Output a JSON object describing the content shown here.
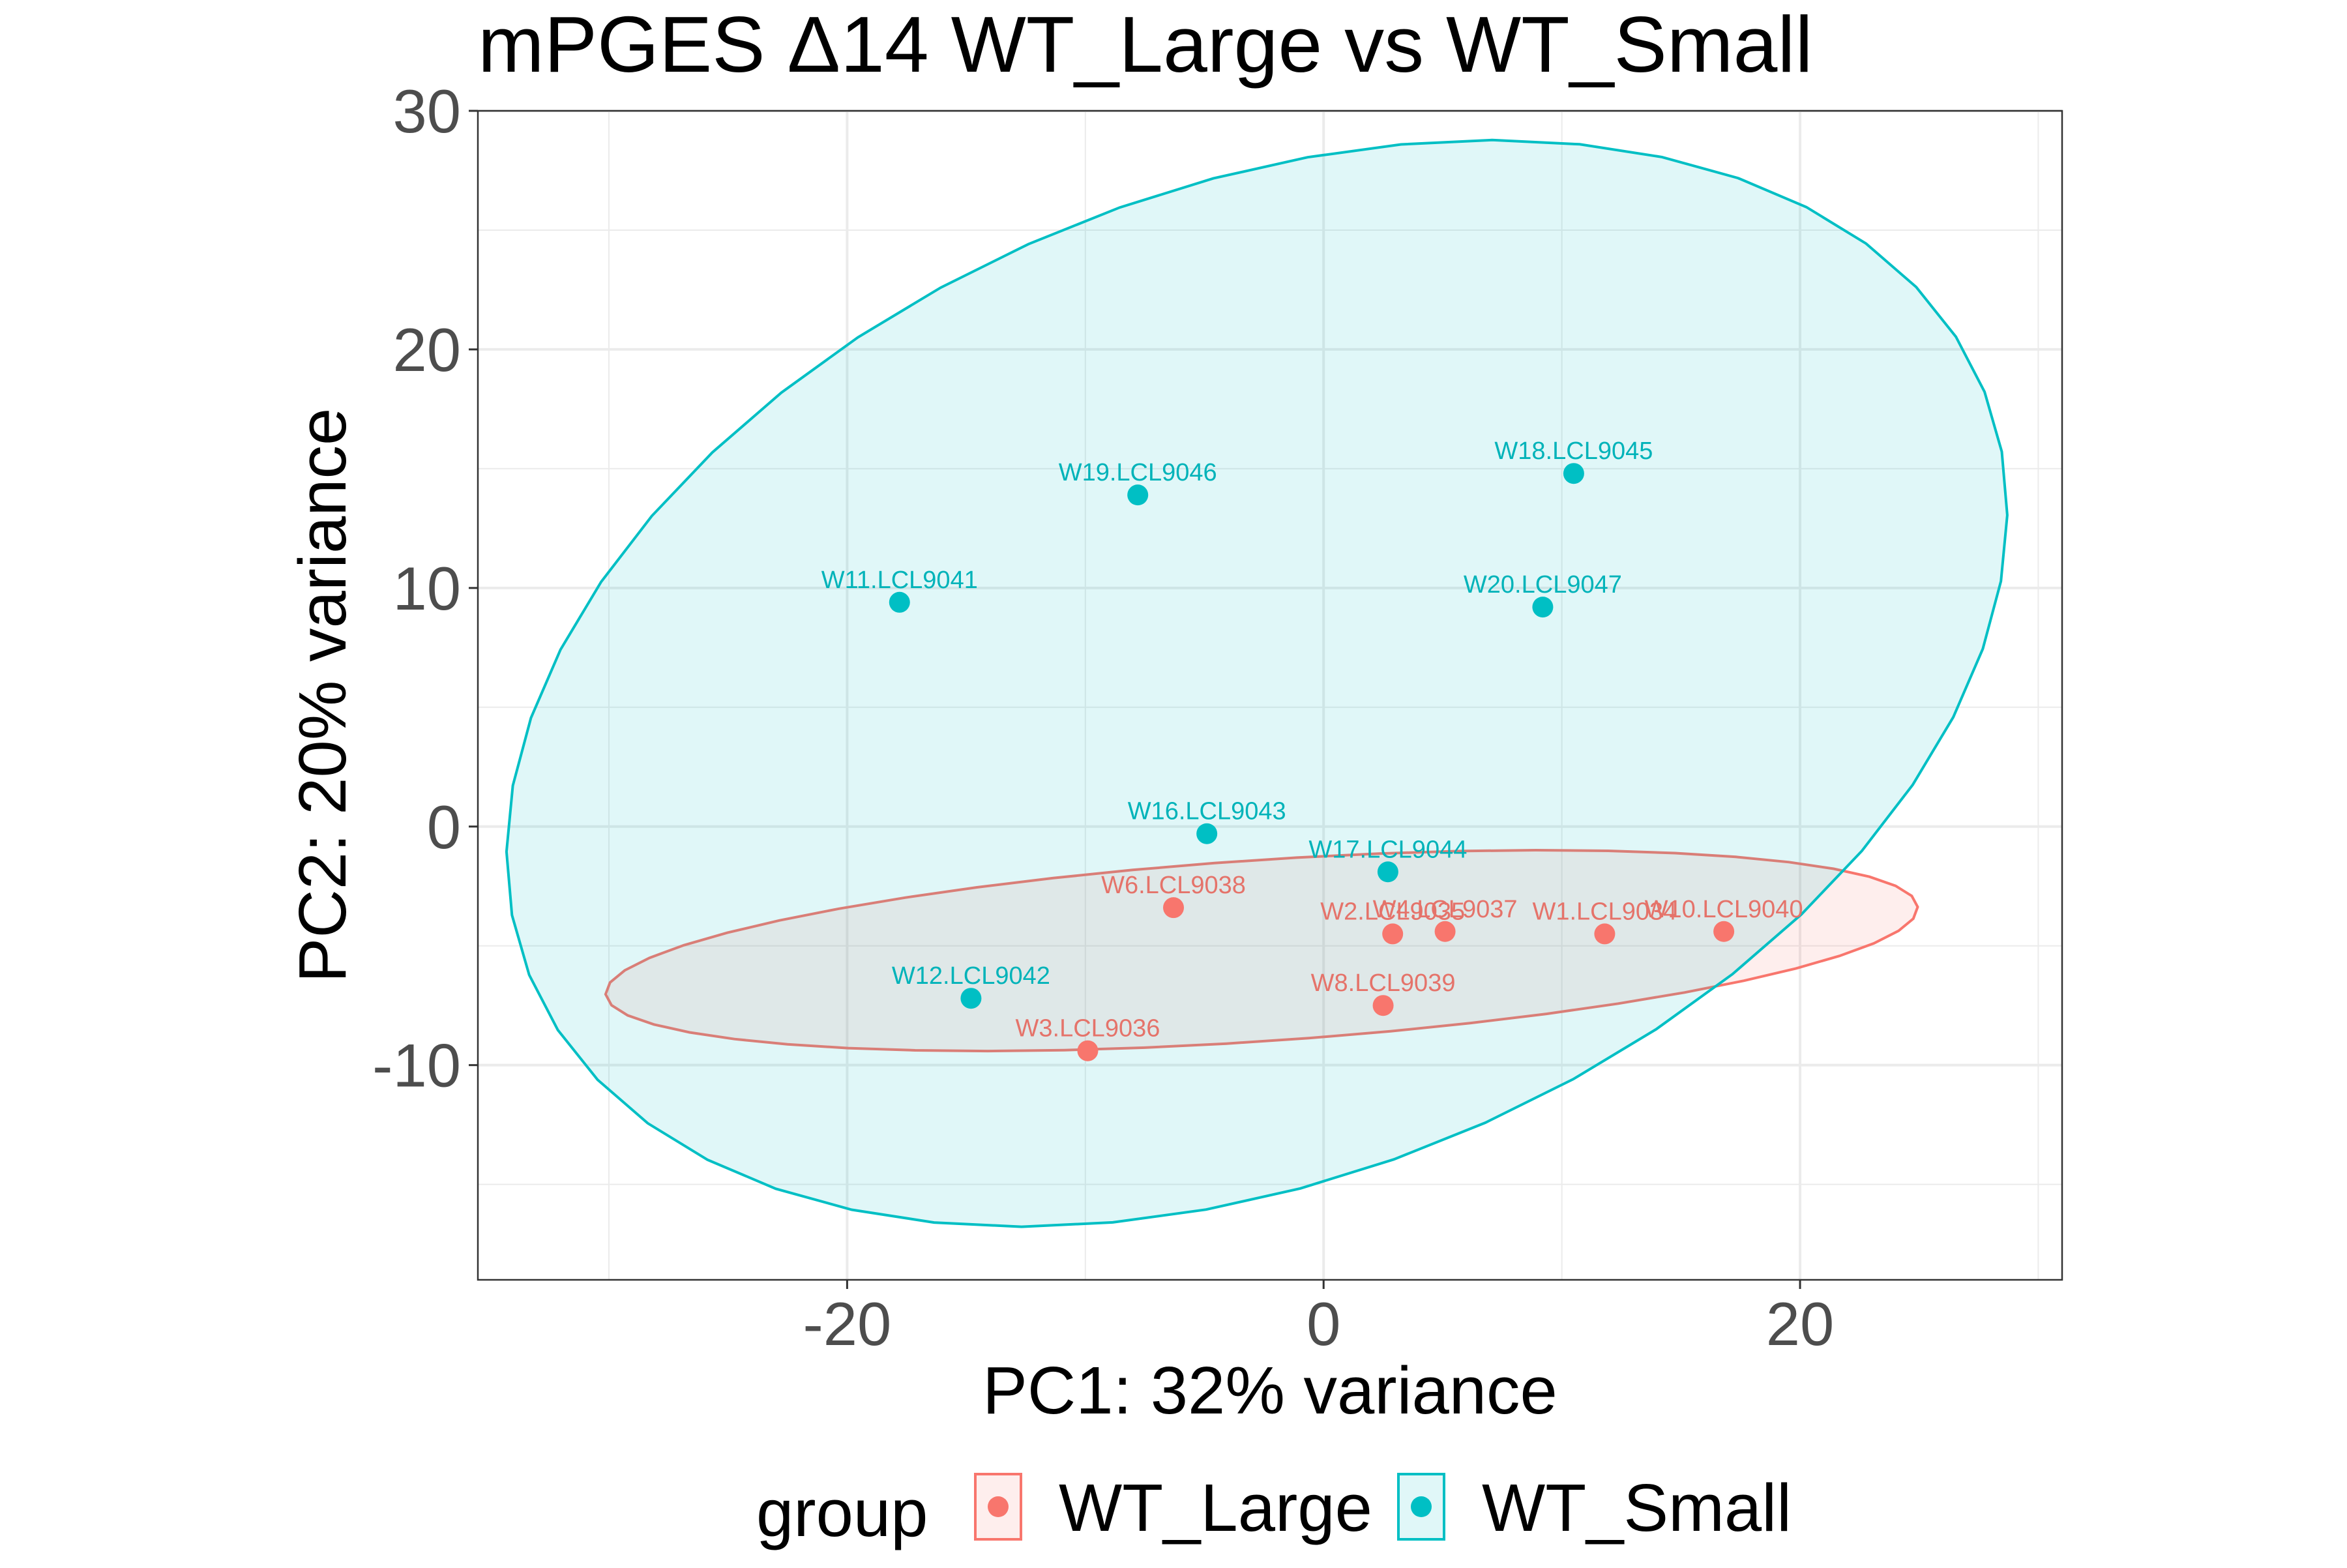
{
  "chart_data": {
    "type": "scatter",
    "title": "mPGES Δ14 WT_Large vs WT_Small",
    "xlabel": "PC1: 32% variance",
    "ylabel": "PC2: 20% variance",
    "xlim": [
      -35.5,
      31
    ],
    "ylim": [
      -19,
      30
    ],
    "x_ticks": [
      -20,
      0,
      20
    ],
    "x_tick_labels": [
      "-20",
      "0",
      "20"
    ],
    "y_ticks": [
      -10,
      0,
      10,
      20,
      30
    ],
    "y_tick_labels": [
      "-10",
      "0",
      "10",
      "20",
      "30"
    ],
    "grid": true,
    "legend": {
      "title": "group",
      "position": "bottom",
      "entries": [
        "WT_Large",
        "WT_Small"
      ]
    },
    "colors": {
      "WT_Large": "#F8766D",
      "WT_Small": "#00BFC4",
      "WT_Large_label": "#E5736A",
      "WT_Small_label": "#00B3B9"
    },
    "series": [
      {
        "name": "WT_Large",
        "points": [
          {
            "label": "W1.LCL9034",
            "x": 11.8,
            "y": -4.5
          },
          {
            "label": "W10.LCL9040",
            "x": 16.8,
            "y": -4.4
          },
          {
            "label": "W2.LCL9035",
            "x": 2.9,
            "y": -4.5
          },
          {
            "label": "W3.LCL9036",
            "x": -9.9,
            "y": -9.4
          },
          {
            "label": "W4.LCL9037",
            "x": 5.1,
            "y": -4.4
          },
          {
            "label": "W6.LCL9038",
            "x": -6.3,
            "y": -3.4
          },
          {
            "label": "W8.LCL9039",
            "x": 2.5,
            "y": -7.5
          }
        ]
      },
      {
        "name": "WT_Small",
        "points": [
          {
            "label": "W11.LCL9041",
            "x": -17.8,
            "y": 9.4
          },
          {
            "label": "W12.LCL9042",
            "x": -14.8,
            "y": -7.2
          },
          {
            "label": "W16.LCL9043",
            "x": -4.9,
            "y": -0.3
          },
          {
            "label": "W17.LCL9044",
            "x": 2.7,
            "y": -1.9
          },
          {
            "label": "W18.LCL9045",
            "x": 10.5,
            "y": 14.8
          },
          {
            "label": "W19.LCL9046",
            "x": -7.8,
            "y": 13.9
          },
          {
            "label": "W20.LCL9047",
            "x": 9.2,
            "y": 9.2
          }
        ]
      }
    ],
    "ellipses": [
      {
        "group": "WT_Large",
        "center": [
          -2.6,
          -5.2
        ],
        "semi_axes": [
          27.6,
          3.8
        ],
        "angle_deg": 3.8
      },
      {
        "group": "WT_Small",
        "center": [
          -2.8,
          6.0
        ],
        "semi_axes": [
          32.9,
          20.7
        ],
        "angle_deg": 21.8
      }
    ]
  }
}
